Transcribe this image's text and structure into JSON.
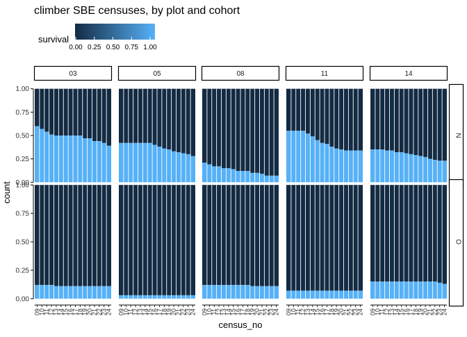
{
  "chart_data": {
    "type": "bar",
    "title": "climber SBE censuses, by plot and cohort",
    "xlabel": "census_no",
    "ylabel": "count",
    "ylim": [
      0,
      1
    ],
    "yticks": [
      "0.00",
      "0.25",
      "0.50",
      "0.75",
      "1.00"
    ],
    "categories": [
      "09",
      "10",
      "11",
      "12",
      "13",
      "14",
      "15",
      "16",
      "17",
      "18",
      "19",
      "20",
      "21",
      "22",
      "23",
      "24"
    ],
    "legend": {
      "title": "survival",
      "position": "top",
      "ticks": [
        "0.00",
        "0.25",
        "0.50",
        "0.75",
        "1.00"
      ],
      "color_low": "#132b43",
      "color_high": "#56b1f7"
    },
    "colors": {
      "alive": "#56b1f7",
      "dead": "#132b43"
    },
    "facet_cols": [
      "03",
      "05",
      "08",
      "11",
      "14"
    ],
    "facet_rows": [
      "N",
      "O"
    ],
    "panels": [
      {
        "col": "03",
        "row": "N",
        "values": [
          0.6,
          0.57,
          0.54,
          0.51,
          0.5,
          0.5,
          0.5,
          0.5,
          0.5,
          0.5,
          0.47,
          0.47,
          0.44,
          0.44,
          0.42,
          0.39
        ]
      },
      {
        "col": "05",
        "row": "N",
        "values": [
          0.42,
          0.42,
          0.42,
          0.42,
          0.42,
          0.42,
          0.42,
          0.4,
          0.38,
          0.36,
          0.35,
          0.33,
          0.32,
          0.31,
          0.3,
          0.28
        ]
      },
      {
        "col": "08",
        "row": "N",
        "values": [
          0.21,
          0.19,
          0.17,
          0.17,
          0.15,
          0.15,
          0.14,
          0.12,
          0.12,
          0.12,
          0.1,
          0.1,
          0.09,
          0.07,
          0.07,
          0.07
        ]
      },
      {
        "col": "11",
        "row": "N",
        "values": [
          0.55,
          0.55,
          0.55,
          0.55,
          0.52,
          0.49,
          0.45,
          0.42,
          0.41,
          0.38,
          0.36,
          0.35,
          0.34,
          0.34,
          0.34,
          0.34
        ]
      },
      {
        "col": "14",
        "row": "N",
        "values": [
          0.35,
          0.35,
          0.35,
          0.34,
          0.34,
          0.32,
          0.32,
          0.31,
          0.3,
          0.29,
          0.28,
          0.27,
          0.25,
          0.24,
          0.23,
          0.23
        ]
      },
      {
        "col": "03",
        "row": "O",
        "values": [
          0.12,
          0.12,
          0.12,
          0.12,
          0.11,
          0.11,
          0.11,
          0.11,
          0.11,
          0.11,
          0.11,
          0.11,
          0.11,
          0.11,
          0.11,
          0.11
        ]
      },
      {
        "col": "05",
        "row": "O",
        "values": [
          0.03,
          0.03,
          0.03,
          0.03,
          0.03,
          0.03,
          0.03,
          0.03,
          0.03,
          0.03,
          0.03,
          0.03,
          0.03,
          0.03,
          0.03,
          0.03
        ]
      },
      {
        "col": "08",
        "row": "O",
        "values": [
          0.12,
          0.12,
          0.12,
          0.12,
          0.12,
          0.12,
          0.12,
          0.12,
          0.12,
          0.12,
          0.11,
          0.11,
          0.11,
          0.11,
          0.11,
          0.11
        ]
      },
      {
        "col": "11",
        "row": "O",
        "values": [
          0.07,
          0.07,
          0.07,
          0.07,
          0.07,
          0.07,
          0.07,
          0.07,
          0.07,
          0.07,
          0.07,
          0.07,
          0.07,
          0.07,
          0.07,
          0.07
        ]
      },
      {
        "col": "14",
        "row": "O",
        "values": [
          0.15,
          0.15,
          0.15,
          0.15,
          0.15,
          0.15,
          0.15,
          0.15,
          0.15,
          0.15,
          0.15,
          0.15,
          0.15,
          0.15,
          0.14,
          0.13
        ]
      }
    ]
  }
}
